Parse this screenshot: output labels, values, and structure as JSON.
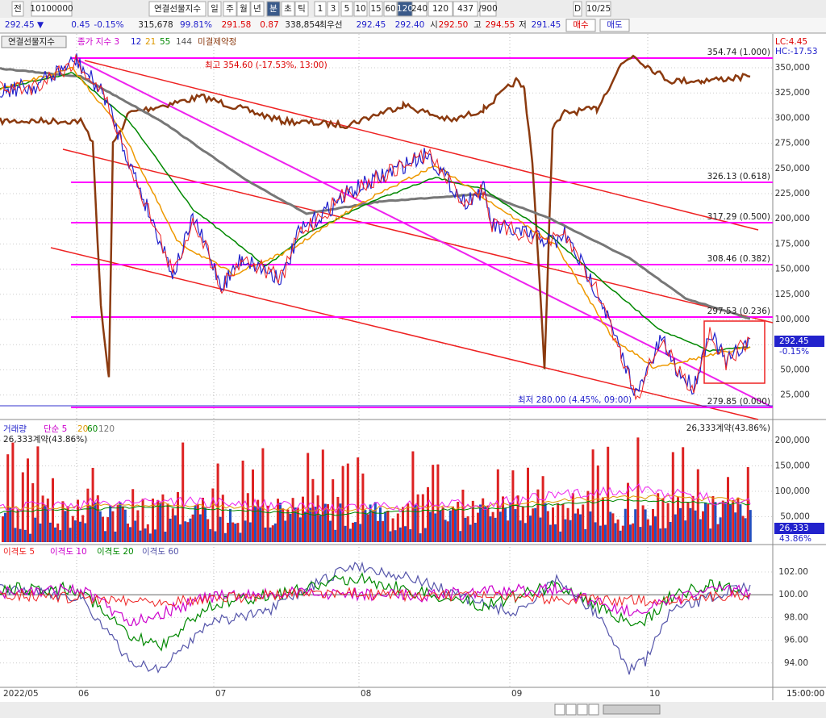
{
  "toolbar": {
    "items": [
      "전",
      "10100000",
      "연결선물지수",
      "일",
      "주",
      "월",
      "년",
      "분",
      "초",
      "틱",
      "1",
      "3",
      "5",
      "10",
      "15",
      "60",
      "120",
      "240",
      "120",
      "437",
      "/900",
      "D",
      "10/25"
    ]
  },
  "quote_bar": {
    "items": [
      "292.45 ▼",
      "0.45",
      "-0.15%",
      "315,678",
      "99.81%",
      "291.58",
      "0.87",
      "338,854",
      "최우선",
      "292.45",
      "292.40",
      "시",
      "292.50",
      "고",
      "294.55",
      "저",
      "291.45",
      "매수",
      "매도"
    ]
  },
  "price_panel": {
    "legend": [
      "연결선물지수",
      "종가 지수 3",
      "12",
      "21",
      "55",
      "144",
      "미결제약정"
    ],
    "high_note": "최고 354.60 (-17.53%, 13:00)",
    "low_note": "최저 280.00 (4.45%, 09:00)",
    "lc": "LC:4.45",
    "hc": "HC:-17.53",
    "fib_labels": [
      "354.74 (1.000)",
      "326.13 (0.618)",
      "317.29 (0.500)",
      "308.46 (0.382)",
      "297.53 (0.236)",
      "279.85 (0.000)"
    ],
    "axis_labels": [
      "350,000",
      "325,000",
      "300,000",
      "275,000",
      "250,000",
      "225,000",
      "200,000",
      "175,000",
      "150,000",
      "125,000",
      "100,000",
      "75,000",
      "50,000",
      "25,000"
    ],
    "current_price": "292.45",
    "current_change": "-0.15%"
  },
  "volume_panel": {
    "legend": [
      "거래량",
      "단순 5",
      "20",
      "60",
      "120"
    ],
    "left_note": "26,333계약(43.86%)",
    "right_note": "26,333계약(43.86%)",
    "axis_labels": [
      "200,000",
      "150,000",
      "100,000",
      "50,000"
    ],
    "current_value": "26,333",
    "current_pct": "43.86%"
  },
  "disparity_panel": {
    "legend": [
      "이격도 5",
      "이격도 10",
      "이격도 20",
      "이격도 60"
    ],
    "axis_labels": [
      "102.00",
      "100.00",
      "98.00",
      "96.00",
      "94.00"
    ]
  },
  "x_axis": {
    "labels": [
      "2022/05",
      "06",
      "07",
      "08",
      "09",
      "10"
    ],
    "time": "15:00:00"
  }
}
